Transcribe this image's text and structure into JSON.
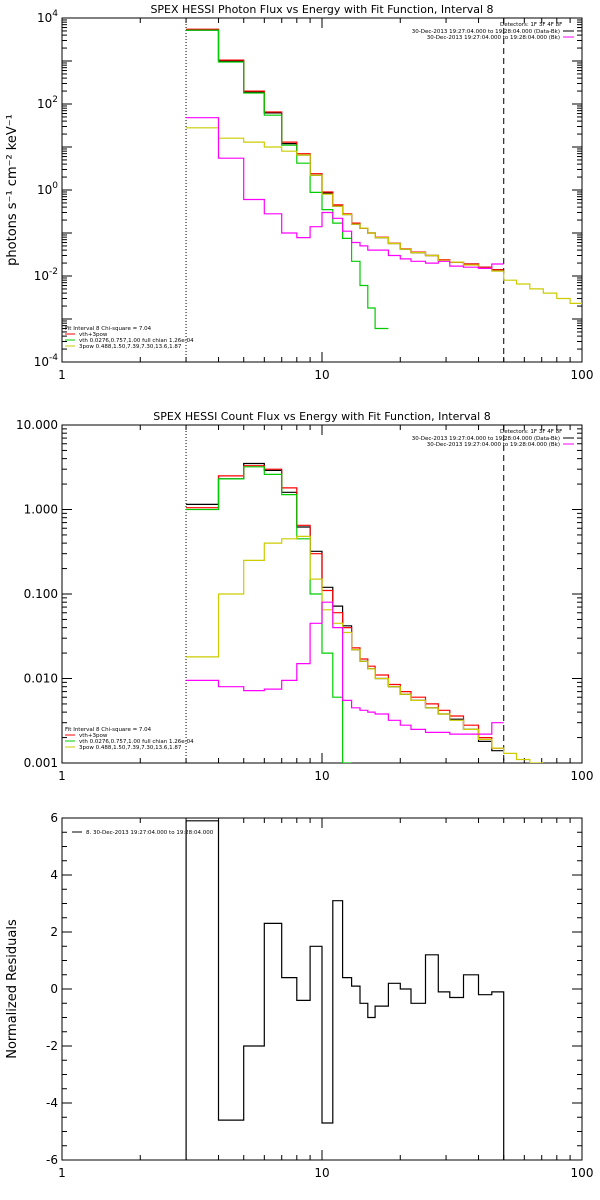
{
  "chart_data": [
    {
      "type": "line",
      "title": "SPEX HESSI Photon Flux vs Energy with Fit Function, Interval 8",
      "ylabel": "photons s⁻¹ cm⁻² keV⁻¹",
      "xlabel": "",
      "xscale": "log",
      "yscale": "log",
      "xlim": [
        1,
        100
      ],
      "ylim": [
        0.0001,
        10000
      ],
      "xticks": [
        {
          "v": 1,
          "label": "1"
        },
        {
          "v": 10,
          "label": "10"
        },
        {
          "v": 100,
          "label": "100"
        }
      ],
      "yticks": [
        {
          "v": 0.0001,
          "label": "10",
          "exp": "-4"
        },
        {
          "v": 0.01,
          "label": "10",
          "exp": "-2"
        },
        {
          "v": 1,
          "label": "10",
          "exp": "0"
        },
        {
          "v": 100,
          "label": "10",
          "exp": "2"
        },
        {
          "v": 10000,
          "label": "10",
          "exp": "4"
        }
      ],
      "legend_tr_head": "Detectors: 1F 3F 4F 8F",
      "legend_tr": [
        {
          "text": "30-Dec-2013 19:27:04.000 to 19:28:04.000 (Data-Bk)",
          "color": "#000000"
        },
        {
          "text": "30-Dec-2013 19:27:04.000 to 19:28:04.000 (Bk)",
          "color": "#ff00ff"
        }
      ],
      "legend_bl_head": "Fit Interval 8   Chi-square = 7.04",
      "legend_bl": [
        {
          "text": "vth+3pow",
          "color": "#ff0000"
        },
        {
          "text": "vth 0.0276,0.757,1.00  full chian 1.26e-04",
          "color": "#00cc00"
        },
        {
          "text": "3pow 0.488,1.50,7.39,7.30,13.6,1.87",
          "color": "#cccc00"
        }
      ],
      "vlines": [
        {
          "x": 3,
          "style": "dotted"
        },
        {
          "x": 50,
          "style": "dashed"
        }
      ],
      "edges": [
        3,
        4,
        5,
        6,
        7,
        8,
        9,
        10,
        11,
        12,
        13,
        14,
        15,
        16,
        18,
        20,
        22,
        25,
        28,
        31,
        35,
        40,
        45,
        50,
        56,
        63,
        71,
        80,
        90,
        100
      ],
      "series": [
        {
          "name": "Data-Bk",
          "color": "#000000",
          "values": [
            5200,
            1000,
            190,
            62,
            12,
            6.5,
            2.2,
            0.85,
            0.42,
            0.27,
            0.16,
            0.13,
            0.1,
            0.078,
            0.057,
            0.042,
            0.035,
            0.03,
            0.023,
            0.021,
            0.019,
            0.016,
            0.014,
            null,
            null,
            null,
            null,
            null,
            null
          ]
        },
        {
          "name": "vth+3pow",
          "color": "#ff0000",
          "values": [
            5500,
            1050,
            200,
            65,
            13,
            7,
            2.4,
            0.9,
            0.45,
            0.28,
            0.17,
            0.13,
            0.1,
            0.08,
            0.058,
            0.043,
            0.036,
            0.03,
            0.024,
            0.021,
            0.019,
            0.016,
            0.014,
            null,
            null,
            null,
            null,
            null,
            null
          ]
        },
        {
          "name": "vth",
          "color": "#00cc00",
          "values": [
            5200,
            950,
            180,
            55,
            11,
            4.2,
            0.88,
            0.35,
            0.17,
            0.075,
            0.022,
            0.006,
            0.0018,
            0.0006,
            null,
            null,
            null,
            null,
            null,
            null,
            null,
            null,
            null,
            null,
            null,
            null,
            null,
            null,
            null
          ]
        },
        {
          "name": "3pow",
          "color": "#cccc00",
          "values": [
            28,
            16,
            13,
            10,
            8,
            6.5,
            2.2,
            0.8,
            0.42,
            0.27,
            0.16,
            0.13,
            0.1,
            0.078,
            0.057,
            0.042,
            0.035,
            0.03,
            0.023,
            0.021,
            0.018,
            0.015,
            0.013,
            0.008,
            0.0065,
            0.005,
            0.004,
            0.003,
            0.0023
          ]
        },
        {
          "name": "Bk",
          "color": "#ff00ff",
          "values": [
            48,
            5.5,
            0.6,
            0.28,
            0.1,
            0.078,
            0.14,
            0.3,
            0.22,
            0.11,
            0.06,
            0.05,
            0.04,
            0.04,
            0.03,
            0.025,
            0.022,
            0.02,
            0.022,
            0.017,
            0.016,
            0.015,
            0.019,
            null,
            null,
            null,
            null,
            null,
            null
          ]
        }
      ]
    },
    {
      "type": "line",
      "title": "SPEX HESSI Count Flux vs Energy with Fit Function, Interval 8",
      "ylabel": "",
      "xlabel": "",
      "xscale": "log",
      "yscale": "log",
      "xlim": [
        1,
        100
      ],
      "ylim": [
        0.001,
        10
      ],
      "xticks": [
        {
          "v": 1,
          "label": "1"
        },
        {
          "v": 10,
          "label": "10"
        },
        {
          "v": 100,
          "label": "100"
        }
      ],
      "yticks": [
        {
          "v": 0.001,
          "label": "0.001"
        },
        {
          "v": 0.01,
          "label": "0.010"
        },
        {
          "v": 0.1,
          "label": "0.100"
        },
        {
          "v": 1,
          "label": "1.000"
        },
        {
          "v": 10,
          "label": "10.000"
        }
      ],
      "legend_tr_head": "Detectors: 1F 3F 4F 8F",
      "legend_tr": [
        {
          "text": "30-Dec-2013 19:27:04.000 to 19:28:04.000 (Data-Bk)",
          "color": "#000000"
        },
        {
          "text": "30-Dec-2013 19:27:04.000 to 19:28:04.000 (Bk)",
          "color": "#ff00ff"
        }
      ],
      "legend_bl_head": "Fit Interval 8   Chi-square = 7.04",
      "legend_bl": [
        {
          "text": "vth+3pow",
          "color": "#ff0000"
        },
        {
          "text": "vth 0.0276,0.757,1.00  full chian 1.26e-04",
          "color": "#00cc00"
        },
        {
          "text": "3pow 0.488,1.50,7.39,7.30,13.6,1.87",
          "color": "#cccc00"
        }
      ],
      "vlines": [
        {
          "x": 3,
          "style": "dotted"
        },
        {
          "x": 50,
          "style": "dashed"
        }
      ],
      "edges": [
        3,
        4,
        5,
        6,
        7,
        8,
        9,
        10,
        11,
        12,
        13,
        14,
        15,
        16,
        18,
        20,
        22,
        25,
        28,
        31,
        35,
        40,
        45,
        50,
        56,
        63,
        71,
        80,
        90,
        100
      ],
      "series": [
        {
          "name": "Data-Bk",
          "color": "#000000",
          "values": [
            1.15,
            2.3,
            3.5,
            2.9,
            1.6,
            0.62,
            0.32,
            0.12,
            0.072,
            0.042,
            0.022,
            0.016,
            0.013,
            0.01,
            0.008,
            0.0065,
            0.0055,
            0.0045,
            0.0038,
            0.0033,
            0.0025,
            0.0018,
            0.0014,
            null,
            null,
            null,
            null,
            null,
            null
          ]
        },
        {
          "name": "vth+3pow",
          "color": "#ff0000",
          "values": [
            1.05,
            2.5,
            3.3,
            3.0,
            1.8,
            0.65,
            0.3,
            0.11,
            0.06,
            0.04,
            0.023,
            0.017,
            0.014,
            0.011,
            0.0085,
            0.007,
            0.006,
            0.005,
            0.0042,
            0.0036,
            0.0028,
            0.002,
            0.0015,
            null,
            null,
            null,
            null,
            null,
            null
          ]
        },
        {
          "name": "vth",
          "color": "#00cc00",
          "values": [
            1.0,
            2.3,
            3.2,
            2.6,
            1.5,
            0.45,
            0.1,
            0.02,
            0.006,
            0.001,
            null,
            null,
            null,
            null,
            null,
            null,
            null,
            null,
            null,
            null,
            null,
            null,
            null,
            null,
            null,
            null,
            null,
            null,
            null
          ]
        },
        {
          "name": "3pow",
          "color": "#cccc00",
          "values": [
            0.018,
            0.1,
            0.25,
            0.4,
            0.45,
            0.48,
            0.15,
            0.065,
            0.045,
            0.035,
            0.022,
            0.016,
            0.013,
            0.01,
            0.008,
            0.0065,
            0.0055,
            0.0045,
            0.0038,
            0.0032,
            0.0025,
            0.0019,
            0.0015,
            0.0013,
            0.0011,
            0.001,
            null,
            null,
            null
          ]
        },
        {
          "name": "Bk",
          "color": "#ff00ff",
          "values": [
            0.0095,
            0.008,
            0.0072,
            0.0075,
            0.0095,
            0.015,
            0.045,
            0.08,
            0.04,
            0.0055,
            0.0045,
            0.0042,
            0.004,
            0.0038,
            0.0032,
            0.0028,
            0.0025,
            0.0023,
            0.0023,
            0.0022,
            0.0022,
            0.0022,
            0.003,
            null,
            null,
            null,
            null,
            null,
            null
          ]
        }
      ]
    },
    {
      "type": "line",
      "title": "",
      "ylabel": "Normalized Residuals",
      "xlabel": "",
      "xscale": "log",
      "yscale": "linear",
      "xlim": [
        1,
        100
      ],
      "ylim": [
        -6,
        6
      ],
      "xticks": [
        {
          "v": 1,
          "label": "1"
        },
        {
          "v": 10,
          "label": "10"
        },
        {
          "v": 100,
          "label": "100"
        }
      ],
      "yticks": [
        {
          "v": -6,
          "label": "-6"
        },
        {
          "v": -4,
          "label": "-4"
        },
        {
          "v": -2,
          "label": "-2"
        },
        {
          "v": 0,
          "label": "0"
        },
        {
          "v": 2,
          "label": "2"
        },
        {
          "v": 4,
          "label": "4"
        },
        {
          "v": 6,
          "label": "6"
        }
      ],
      "legend_tl": [
        {
          "text": "8. 30-Dec-2013 19:27:04.000 to 19:28:04.000",
          "color": "#000000"
        }
      ],
      "edges": [
        3,
        4,
        5,
        6,
        7,
        8,
        9,
        10,
        11,
        12,
        13,
        14,
        15,
        16,
        18,
        20,
        22,
        25,
        28,
        31,
        35,
        40,
        45,
        50
      ],
      "closed": true,
      "series": [
        {
          "name": "residuals",
          "color": "#000000",
          "values": [
            5.9,
            -4.6,
            -2.0,
            2.3,
            0.4,
            -0.4,
            1.5,
            -4.7,
            3.1,
            0.4,
            0.1,
            -0.5,
            -1.0,
            -0.6,
            0.2,
            0.0,
            -0.5,
            1.2,
            -0.1,
            -0.3,
            0.5,
            -0.2,
            -0.1
          ]
        }
      ]
    }
  ]
}
